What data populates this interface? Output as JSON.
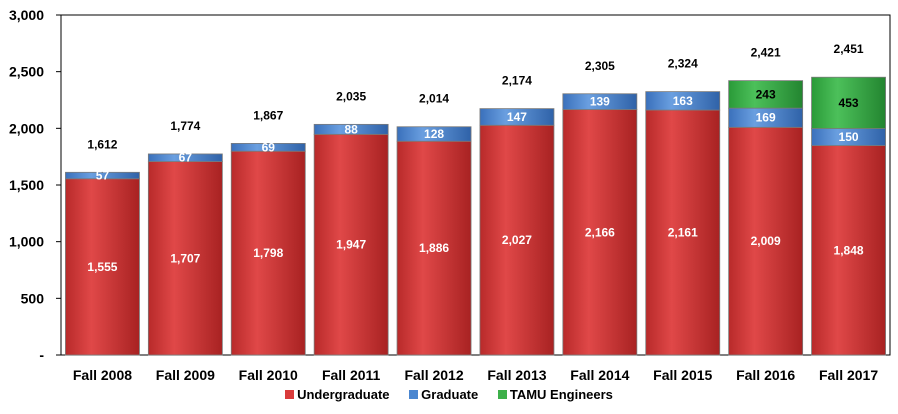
{
  "chart_data": {
    "type": "bar",
    "stacked": true,
    "categories": [
      "Fall 2008",
      "Fall 2009",
      "Fall 2010",
      "Fall 2011",
      "Fall 2012",
      "Fall 2013",
      "Fall 2014",
      "Fall 2015",
      "Fall 2016",
      "Fall 2017"
    ],
    "series": [
      {
        "name": "Undergraduate",
        "values": [
          1555,
          1707,
          1798,
          1947,
          1886,
          2027,
          2166,
          2161,
          2009,
          1848
        ],
        "labels": [
          "1,555",
          "1,707",
          "1,798",
          "1,947",
          "1,886",
          "2,027",
          "2,166",
          "2,161",
          "2,009",
          "1,848"
        ],
        "color": "#d93b3b",
        "label_color": "#ffffff"
      },
      {
        "name": "Graduate",
        "values": [
          57,
          67,
          69,
          88,
          128,
          147,
          139,
          163,
          169,
          150
        ],
        "labels": [
          "57",
          "67",
          "69",
          "88",
          "128",
          "147",
          "139",
          "163",
          "169",
          "150"
        ],
        "color": "#4a86d0",
        "label_color": "#ffffff"
      },
      {
        "name": "TAMU Engineers",
        "values": [
          0,
          0,
          0,
          0,
          0,
          0,
          0,
          0,
          243,
          453
        ],
        "labels": [
          "",
          "",
          "",
          "",
          "",
          "",
          "",
          "",
          "243",
          "453"
        ],
        "color": "#3db04a",
        "label_color": "#000000"
      }
    ],
    "totals": [
      "1,612",
      "1,774",
      "1,867",
      "2,035",
      "2,014",
      "2,174",
      "2,305",
      "2,324",
      "2,421",
      "2,451"
    ],
    "total_values": [
      1612,
      1774,
      1867,
      2035,
      2014,
      2174,
      2305,
      2324,
      2421,
      2451
    ],
    "ylim": [
      0,
      3000
    ],
    "yticks": [
      0,
      500,
      1000,
      1500,
      2000,
      2500,
      3000
    ],
    "ytick_labels": [
      "-",
      "500",
      "1,000",
      "1,500",
      "2,000",
      "2,500",
      "3,000"
    ],
    "grid": false,
    "legend_position": "bottom",
    "title": "",
    "xlabel": "",
    "ylabel": ""
  }
}
